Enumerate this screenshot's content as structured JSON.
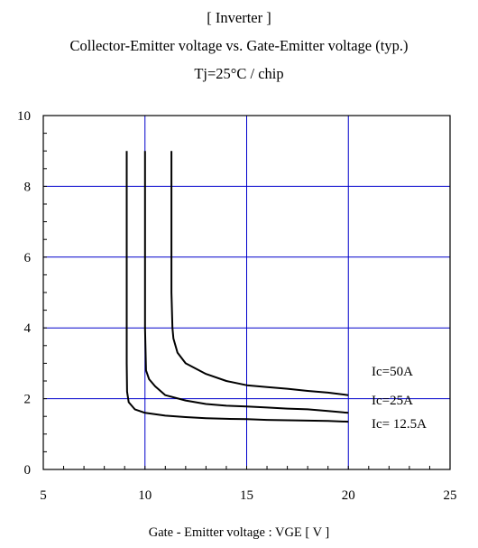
{
  "header": {
    "line1": "[ Inverter ]",
    "line2": "Collector-Emitter voltage  vs. Gate-Emitter voltage (typ.)",
    "line3": "Tj=25°C / chip"
  },
  "colors": {
    "grid": "#0000cc",
    "frame": "#000000",
    "curve": "#000000"
  },
  "chart_data": {
    "type": "line",
    "title": "[ Inverter ] Collector-Emitter voltage  vs. Gate-Emitter voltage (typ.) Tj=25°C / chip",
    "xlabel": "Gate - Emitter voltage  :  VGE  [ V ]",
    "ylabel": "",
    "xlim": [
      5,
      25
    ],
    "ylim": [
      0,
      10
    ],
    "x_ticks": [
      5,
      10,
      15,
      20,
      25
    ],
    "y_ticks": [
      0,
      2,
      4,
      6,
      8,
      10
    ],
    "grid": true,
    "series": [
      {
        "name": "Ic=50A",
        "x": [
          11.3,
          11.3,
          11.35,
          11.4,
          11.6,
          12,
          13,
          14,
          15,
          16,
          17,
          18,
          19,
          20
        ],
        "y": [
          9.0,
          5.0,
          4.0,
          3.7,
          3.3,
          3.0,
          2.7,
          2.5,
          2.38,
          2.33,
          2.28,
          2.22,
          2.17,
          2.1
        ]
      },
      {
        "name": "Ic=25A",
        "x": [
          10.0,
          10.0,
          10.05,
          10.2,
          10.5,
          11,
          12,
          13,
          14,
          15,
          16,
          17,
          18,
          19,
          20
        ],
        "y": [
          9.0,
          4.0,
          2.8,
          2.55,
          2.35,
          2.1,
          1.95,
          1.85,
          1.8,
          1.78,
          1.75,
          1.72,
          1.7,
          1.65,
          1.6
        ]
      },
      {
        "name": "Ic= 12.5A",
        "x": [
          9.1,
          9.1,
          9.12,
          9.2,
          9.5,
          10,
          11,
          12,
          13,
          14,
          15,
          16,
          17,
          18,
          19,
          20
        ],
        "y": [
          9.0,
          3.0,
          2.2,
          1.9,
          1.7,
          1.6,
          1.52,
          1.48,
          1.45,
          1.43,
          1.42,
          1.4,
          1.39,
          1.38,
          1.37,
          1.35
        ]
      }
    ]
  }
}
